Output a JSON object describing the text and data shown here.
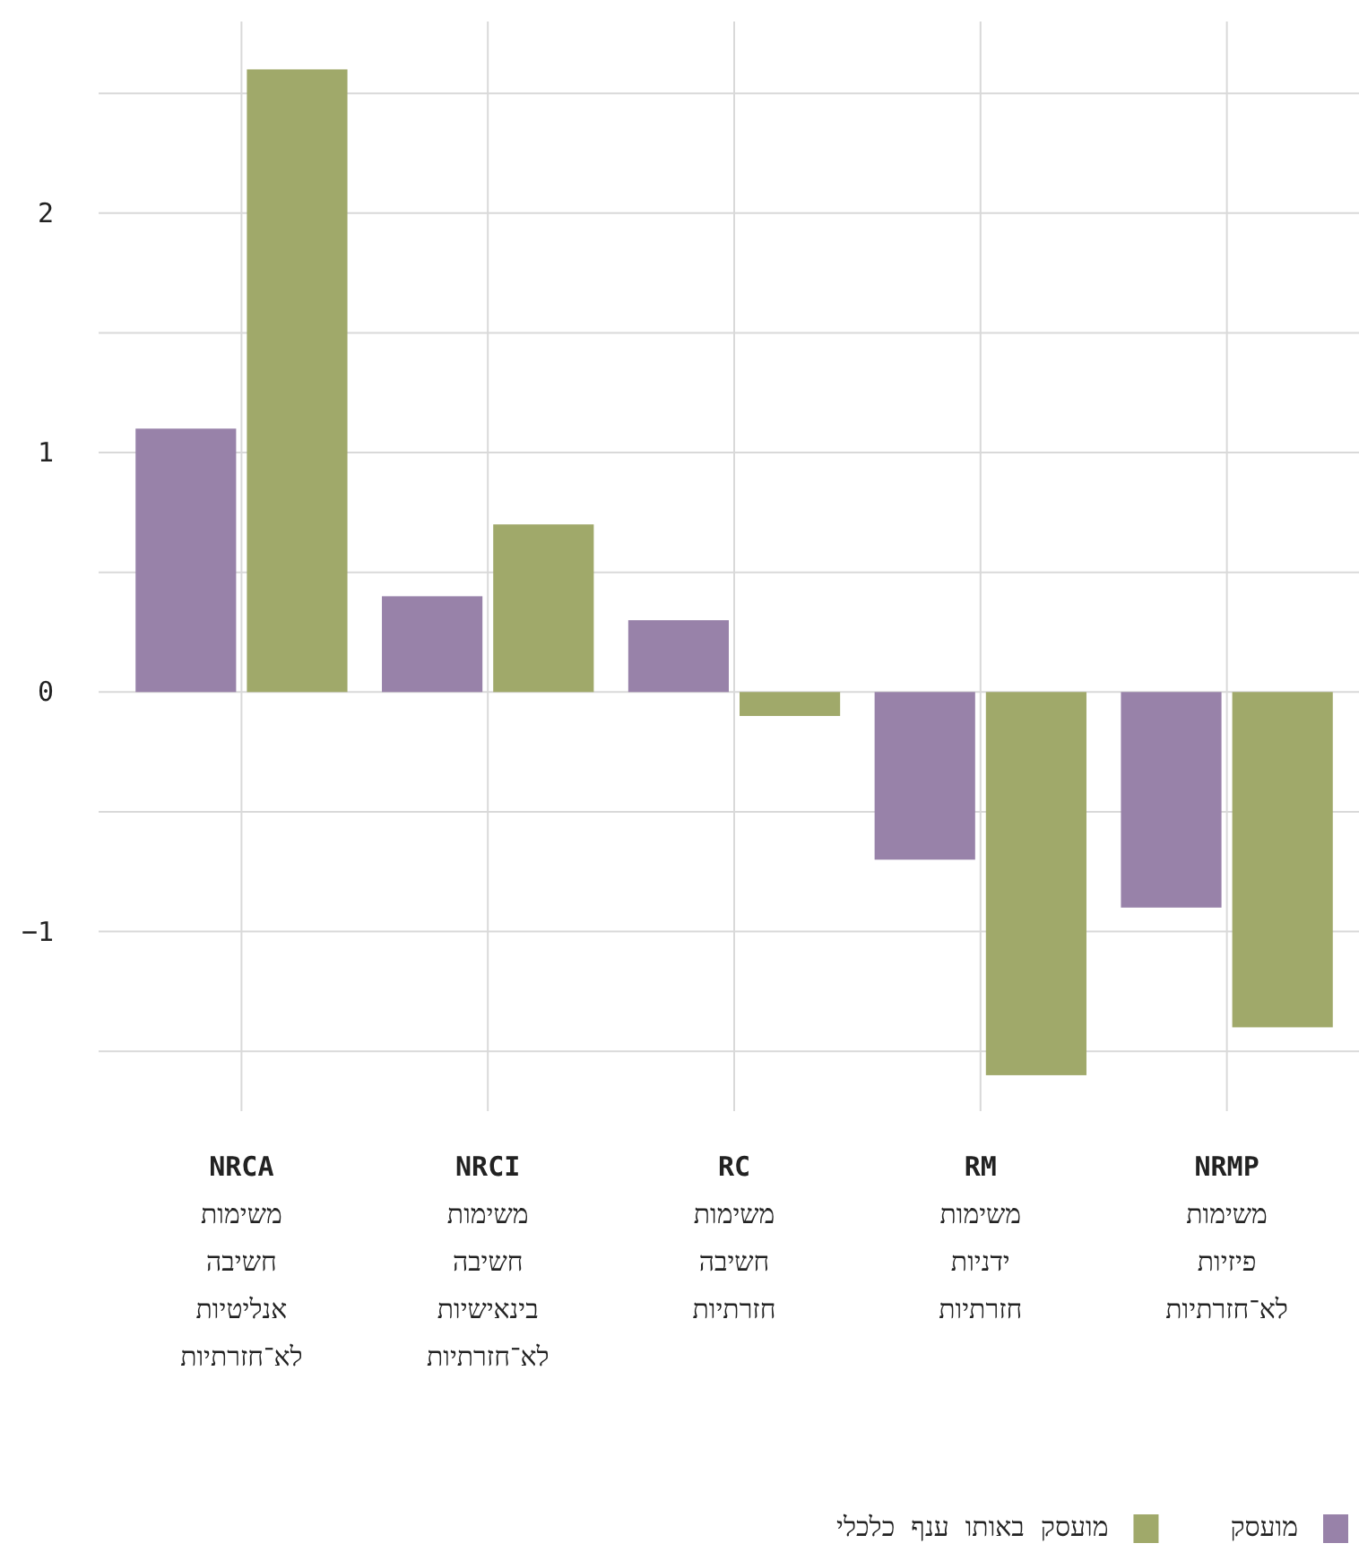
{
  "chart_data": {
    "type": "bar",
    "categories": [
      "NRCA\nמשימות\nחשיבה\nאנליטיות\nלא־חזרתיות",
      "NRCI\nמשימות\nחשיבה\nבינאישיות\nלא־חזרתיות",
      "RC\nמשימות\nחשיבה\nחזרתיות",
      "RM\nמשימות\nידניות\nחזרתיות",
      "NRMP\nמשימות\nפיזיות\nלא־חזרתיות"
    ],
    "series": [
      {
        "name": "מועסק",
        "color": "#9882a9",
        "values": [
          1.1,
          0.4,
          0.3,
          -0.7,
          -0.9
        ]
      },
      {
        "name": "מועסק באותו ענף כלכלי",
        "color": "#a0a96a",
        "values": [
          2.6,
          0.7,
          -0.1,
          -1.6,
          -1.4
        ]
      }
    ],
    "ylim": [
      -1.75,
      2.8
    ],
    "yticks": [
      {
        "value": -1.5,
        "label": null
      },
      {
        "value": -1,
        "label": "−1"
      },
      {
        "value": -0.5,
        "label": null
      },
      0,
      {
        "value": 0.5,
        "label": null
      },
      1,
      {
        "value": 1.5,
        "label": null
      },
      2,
      {
        "value": 2.5,
        "label": null
      }
    ],
    "grid": true,
    "legend": "bottom"
  }
}
